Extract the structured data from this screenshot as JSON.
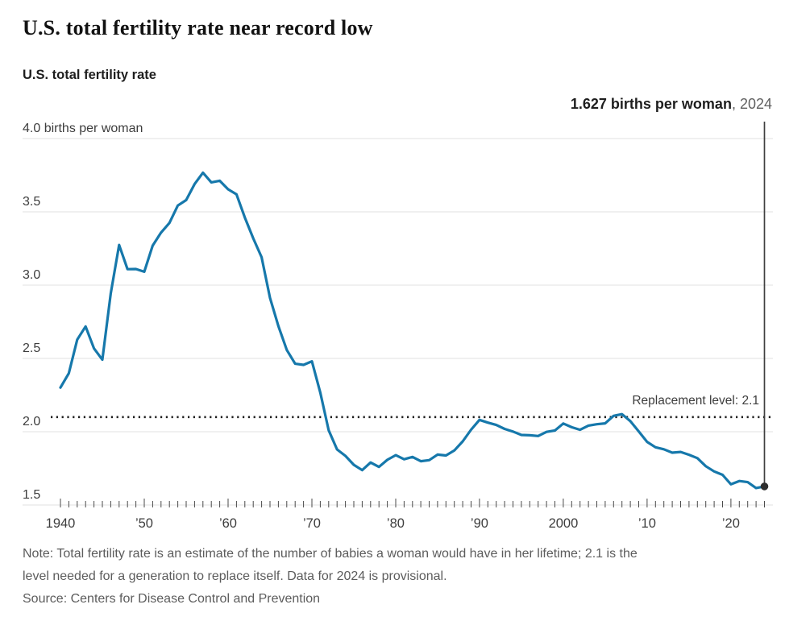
{
  "header": {
    "title": "U.S. total fertility rate near record low",
    "subtitle": "U.S. total fertility rate"
  },
  "annotation": {
    "value_bold": "1.627 births per woman",
    "year_suffix": ", 2024"
  },
  "chart_data": {
    "type": "line",
    "title": "U.S. total fertility rate",
    "unit": "births per woman",
    "x_start": 1940,
    "x_end": 2024,
    "ylim": [
      1.5,
      4.0
    ],
    "grid": "horizontal",
    "yticks": [
      4.0,
      3.5,
      3.0,
      2.5,
      2.0,
      1.5
    ],
    "ytick_labels": [
      "4.0 births per woman",
      "3.5",
      "3.0",
      "2.5",
      "2.0",
      "1.5"
    ],
    "xticks": [
      1940,
      1950,
      1960,
      1970,
      1980,
      1990,
      2000,
      2010,
      2020
    ],
    "xtick_labels": [
      "1940",
      "’50",
      "’60",
      "’70",
      "’80",
      "’90",
      "2000",
      "’10",
      "’20"
    ],
    "replacement_level": 2.1,
    "replacement_label": "Replacement level: 2.1",
    "series": [
      {
        "name": "U.S. total fertility rate (births per woman, annual 1940-2024)",
        "values": [
          2.301,
          2.399,
          2.628,
          2.718,
          2.568,
          2.491,
          2.943,
          3.274,
          3.109,
          3.11,
          3.091,
          3.269,
          3.358,
          3.424,
          3.543,
          3.58,
          3.689,
          3.767,
          3.701,
          3.712,
          3.654,
          3.62,
          3.461,
          3.319,
          3.19,
          2.913,
          2.721,
          2.558,
          2.464,
          2.456,
          2.48,
          2.267,
          2.01,
          1.879,
          1.835,
          1.774,
          1.738,
          1.79,
          1.76,
          1.808,
          1.84,
          1.812,
          1.828,
          1.799,
          1.806,
          1.844,
          1.838,
          1.872,
          1.934,
          2.014,
          2.081,
          2.062,
          2.046,
          2.019,
          2.001,
          1.978,
          1.976,
          1.971,
          1.999,
          2.008,
          2.056,
          2.031,
          2.013,
          2.042,
          2.051,
          2.057,
          2.108,
          2.12,
          2.072,
          2.002,
          1.931,
          1.894,
          1.88,
          1.857,
          1.862,
          1.843,
          1.82,
          1.765,
          1.729,
          1.706,
          1.641,
          1.664,
          1.656,
          1.616,
          1.627
        ]
      }
    ],
    "last_point": {
      "year": 2024,
      "value": 1.627
    },
    "colors": {
      "line": "#1678ab",
      "dot": "#2e2e2e",
      "grid": "#e0e0e0",
      "tick": "#4a4a4a",
      "dotted": "#1e1e1e",
      "vertical": "#3f3f3f"
    }
  },
  "footer": {
    "note_line1": "Note: Total fertility rate is an estimate of the number of babies a woman would have in her lifetime; 2.1 is the",
    "note_line2": "level needed for a generation to replace itself. Data for 2024 is provisional.",
    "source": "Source: Centers for Disease Control and Prevention"
  }
}
